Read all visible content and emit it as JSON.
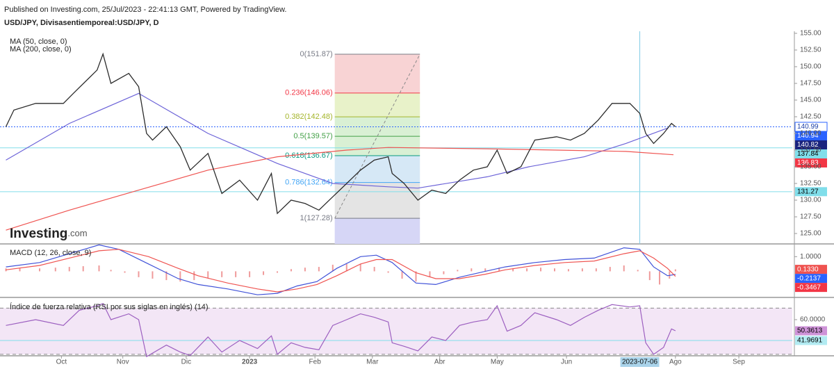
{
  "header": {
    "published": "Published on Investing.com, 25/Jul/2023 - 22:41:13 GMT, Powered by TradingView.",
    "logo_main": "Investing",
    "logo_suffix": ".com"
  },
  "chart_data": [
    {
      "type": "line",
      "title": "USD/JPY, Divisasentiemporeal:USD/JPY, D",
      "xlim": [
        0,
        400
      ],
      "xticks": [
        {
          "value": 31,
          "label": "Oct"
        },
        {
          "value": 62,
          "label": "Nov"
        },
        {
          "value": 94,
          "label": "Dic"
        },
        {
          "value": 126,
          "label": "2023"
        },
        {
          "value": 159,
          "label": "Feb"
        },
        {
          "value": 188,
          "label": "Mar"
        },
        {
          "value": 222,
          "label": "Abr"
        },
        {
          "value": 251,
          "label": "May"
        },
        {
          "value": 286,
          "label": "Jun"
        },
        {
          "value": 341,
          "label": "Ago"
        },
        {
          "value": 373,
          "label": "Sep"
        }
      ],
      "ylim": [
        123.44,
        155.31
      ],
      "yticks": [
        {
          "value": 125,
          "label": "125.00"
        },
        {
          "value": 127.5,
          "label": "127.50"
        },
        {
          "value": 130,
          "label": "130.00"
        },
        {
          "value": 132.5,
          "label": "132.50"
        },
        {
          "value": 135,
          "label": "135.00"
        },
        {
          "value": 137.5,
          "label": "137.50"
        },
        {
          "value": 140,
          "label": "140.00"
        },
        {
          "value": 142.5,
          "label": "142.50"
        },
        {
          "value": 145,
          "label": "145.00"
        },
        {
          "value": 147.5,
          "label": "147.50"
        },
        {
          "value": 150,
          "label": "150.00"
        },
        {
          "value": 152.5,
          "label": "152.50"
        },
        {
          "value": 155,
          "label": "155.00"
        }
      ],
      "price": {
        "color": "#2b2b2b",
        "x": [
          3,
          7,
          18,
          32,
          37,
          49,
          52,
          56,
          65,
          70,
          74,
          77,
          84,
          91,
          96,
          105,
          112,
          121,
          130,
          137,
          140,
          147,
          154,
          161,
          168,
          175,
          182,
          189,
          196,
          198,
          204,
          211,
          218,
          225,
          232,
          239,
          246,
          251,
          256,
          263,
          270,
          281,
          288,
          295,
          302,
          309,
          318,
          323,
          326,
          330,
          335,
          339,
          341
        ],
        "values": [
          141,
          143.5,
          144.5,
          144.5,
          146,
          149.5,
          151.9,
          147.5,
          149,
          147,
          140,
          139,
          141,
          138,
          134.5,
          137,
          131,
          133,
          130,
          134,
          128,
          130,
          129.5,
          128.5,
          130.5,
          132.5,
          134.5,
          136,
          136.5,
          134,
          132.5,
          130,
          131.5,
          131,
          133,
          134.5,
          135,
          137.5,
          134,
          135,
          139,
          139.5,
          139,
          140,
          142,
          144.5,
          144.5,
          143,
          140,
          138.5,
          140,
          141.5,
          141
        ]
      },
      "series": [
        {
          "name": "MA (50, close, 0)",
          "color": "#6c63d8",
          "x": [
            3,
            35,
            70,
            105,
            140,
            168,
            196,
            211,
            246,
            267,
            295,
            316,
            337
          ],
          "values": [
            136,
            141.5,
            146,
            140,
            135.5,
            132.5,
            132,
            131.8,
            133.5,
            135,
            136.5,
            138.5,
            140.8
          ]
        },
        {
          "name": "MA (200, close, 0)",
          "color": "#ef5350",
          "x": [
            3,
            35,
            70,
            105,
            140,
            175,
            196,
            246,
            281,
            316,
            340
          ],
          "values": [
            125.5,
            128.5,
            131.5,
            134.5,
            136.5,
            137.5,
            137.9,
            137.7,
            137.5,
            137.3,
            136.8
          ]
        }
      ],
      "fib": {
        "x": [
          169,
          212
        ],
        "levels": [
          {
            "value": 151.87,
            "label": "0(151.87)",
            "color": "#787b86",
            "fill": "#f8d3d4"
          },
          {
            "value": 146.06,
            "label": "0.236(146.06)",
            "color": "#f23645",
            "fill": "#e8f2c9"
          },
          {
            "value": 142.48,
            "label": "0.382(142.48)",
            "color": "#a4b52a",
            "fill": "#d9f0d4"
          },
          {
            "value": 139.57,
            "label": "0.5(139.57)",
            "color": "#43a047",
            "fill": "#d9f0d4"
          },
          {
            "value": 136.67,
            "label": "0.618(136.67)",
            "color": "#089981",
            "fill": "#d6e8f6"
          },
          {
            "value": 132.64,
            "label": "0.786(132.64)",
            "color": "#42a5f5",
            "fill": "#e4e4e4"
          },
          {
            "value": 127.28,
            "label": "1(127.28)",
            "color": "#787b86",
            "fill": "#d6d6f6"
          }
        ]
      },
      "crosshair": {
        "x": 323,
        "label": "2023-07-06"
      },
      "axis_labels": [
        {
          "value": 140.99,
          "bg": "#ffffff",
          "fg": "#1c3fa8",
          "line": "dotted",
          "line_color": "#2962ff"
        },
        {
          "value": 140.94,
          "bg": "#2962ff",
          "fg": "#ffffff"
        },
        {
          "value": 140.82,
          "bg": "#1a237e",
          "fg": "#ffffff"
        },
        {
          "value": 137.84,
          "bg": "#80deea",
          "fg": "#000000",
          "line": "solid",
          "line_color": "#80deea"
        },
        {
          "value": 136.83,
          "bg": "#f23645",
          "fg": "#ffffff"
        },
        {
          "value": 131.27,
          "bg": "#80deea",
          "fg": "#000000",
          "line": "solid",
          "line_color": "#80deea"
        }
      ]
    },
    {
      "type": "macd",
      "title": "MACD (12, 26, close, 9)",
      "ylim": [
        -1.78,
        1.82
      ],
      "yticks": [
        {
          "value": 1,
          "label": "1.0000"
        }
      ],
      "histogram": {
        "color": "#ef9a9a",
        "x": [
          3,
          10,
          20,
          28,
          35,
          42,
          50,
          56,
          63,
          70,
          77,
          84,
          91,
          98,
          105,
          112,
          119,
          126,
          133,
          140,
          147,
          154,
          161,
          168,
          175,
          182,
          189,
          196,
          203,
          210,
          217,
          224,
          231,
          238,
          245,
          252,
          259,
          266,
          273,
          280,
          287,
          294,
          301,
          308,
          315,
          322,
          328,
          333,
          338,
          341
        ],
        "values": [
          0.2,
          0.2,
          0.2,
          0.25,
          0.3,
          0.35,
          0.4,
          0.1,
          -0.1,
          -0.4,
          -0.5,
          -0.6,
          -0.7,
          -0.6,
          -0.45,
          -0.4,
          -0.4,
          -0.4,
          -0.25,
          -0.1,
          0.15,
          0.25,
          0.3,
          0.45,
          0.5,
          0.5,
          0.3,
          -0.1,
          -0.5,
          -0.7,
          -0.4,
          -0.2,
          0.1,
          0.2,
          0.2,
          0.25,
          0.2,
          0.2,
          0.25,
          0.2,
          0.15,
          0.2,
          0.2,
          0.3,
          0.4,
          0.1,
          -0.6,
          -0.9,
          -0.5,
          0.133
        ]
      },
      "lines": [
        {
          "color": "#3f51d8",
          "x": [
            3,
            20,
            35,
            50,
            60,
            75,
            90,
            100,
            115,
            130,
            140,
            150,
            160,
            170,
            182,
            190,
            198,
            210,
            220,
            232,
            245,
            255,
            270,
            285,
            300,
            315,
            323,
            330,
            337,
            341
          ],
          "values": [
            0.3,
            0.6,
            1.2,
            1.8,
            1.5,
            0.5,
            -0.5,
            -0.9,
            -1.2,
            -1.6,
            -1.5,
            -1,
            -0.7,
            0.2,
            1,
            1.1,
            0.6,
            -0.8,
            -0.9,
            -0.4,
            0,
            0.3,
            0.6,
            0.8,
            0.9,
            1.6,
            1.5,
            0.3,
            -0.3,
            -0.2137
          ]
        },
        {
          "color": "#ef5350",
          "x": [
            3,
            20,
            35,
            50,
            60,
            75,
            90,
            100,
            115,
            130,
            140,
            150,
            160,
            170,
            182,
            190,
            198,
            210,
            220,
            232,
            245,
            255,
            270,
            285,
            300,
            315,
            323,
            330,
            337,
            341
          ],
          "values": [
            0.1,
            0.4,
            0.9,
            1.4,
            1.5,
            1,
            0.2,
            -0.3,
            -0.8,
            -1.2,
            -1.4,
            -1.2,
            -0.9,
            -0.3,
            0.5,
            0.8,
            0.8,
            -0.1,
            -0.5,
            -0.5,
            -0.2,
            0.1,
            0.4,
            0.6,
            0.7,
            1.2,
            1.4,
            0.9,
            0.2,
            -0.3467
          ]
        }
      ],
      "axis_labels": [
        {
          "value": 0.133,
          "label": "0.1330",
          "bg": "#ef5350",
          "fg": "#ffffff"
        },
        {
          "value": -0.2137,
          "bg": "#2962ff",
          "fg": "#ffffff"
        },
        {
          "value": -0.3467,
          "bg": "#f23645",
          "fg": "#ffffff"
        }
      ]
    },
    {
      "type": "rsi",
      "title": "Índice de fuerza relativa (RSI por sus siglas en inglés) (14)",
      "ylim": [
        28.75,
        78
      ],
      "yticks": [
        {
          "value": 60,
          "label": "60.0000"
        }
      ],
      "band": {
        "range": [
          30,
          70
        ],
        "fill": "#f3e6f6",
        "line_color": "#888888"
      },
      "lines": [
        {
          "color": "#9c5fc0",
          "x": [
            3,
            18,
            32,
            40,
            49,
            52,
            56,
            65,
            70,
            74,
            84,
            91,
            96,
            105,
            112,
            121,
            130,
            137,
            140,
            147,
            154,
            161,
            168,
            175,
            182,
            189,
            196,
            198,
            204,
            211,
            218,
            225,
            232,
            239,
            246,
            251,
            256,
            263,
            270,
            281,
            288,
            295,
            302,
            309,
            318,
            323,
            326,
            330,
            335,
            339,
            341
          ],
          "values": [
            55,
            60,
            55,
            68,
            72,
            74,
            60,
            65,
            60,
            28,
            38,
            32,
            29,
            45,
            32,
            42,
            35,
            46,
            30,
            40,
            36,
            34,
            55,
            60,
            65,
            62,
            58,
            40,
            37,
            33,
            45,
            42,
            55,
            58,
            60,
            72,
            50,
            55,
            66,
            60,
            55,
            62,
            68,
            73,
            71,
            72,
            40,
            30,
            36,
            52,
            50.3613
          ]
        }
      ],
      "axis_labels": [
        {
          "value": 50.3613,
          "bg": "#ce93d8",
          "fg": "#000000"
        },
        {
          "value": 41.9691,
          "bg": "#b2ebf2",
          "fg": "#000000",
          "line": "solid",
          "line_color": "#80deea"
        }
      ]
    }
  ]
}
